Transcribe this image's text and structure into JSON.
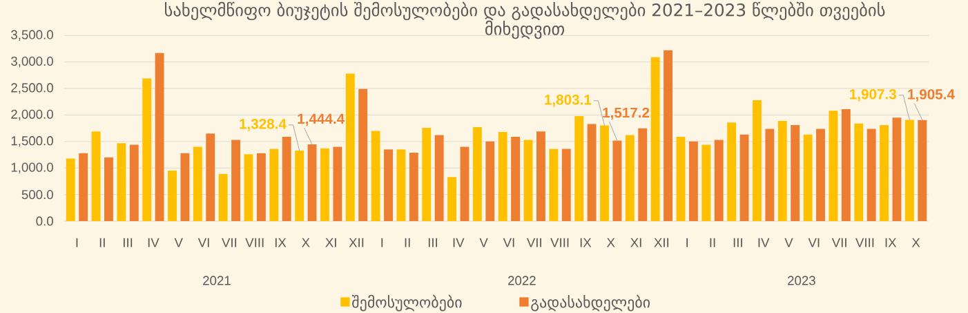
{
  "chart_data": {
    "type": "bar",
    "title": "სახელმწიფო ბიუჯეტის შემოსულობები და გადასახდელები 2021–2023 წლებში თვეების მიხედვით",
    "categories": [
      "I",
      "II",
      "III",
      "IV",
      "V",
      "VI",
      "VII",
      "VIII",
      "IX",
      "X",
      "XI",
      "XII",
      "I",
      "II",
      "III",
      "IV",
      "V",
      "VI",
      "VII",
      "VIII",
      "IX",
      "X",
      "XI",
      "XII",
      "I",
      "II",
      "III",
      "IV",
      "V",
      "VI",
      "VII",
      "VIII",
      "IX",
      "X"
    ],
    "series": [
      {
        "name": "შემოსულობები",
        "color": "#ffc000",
        "values": [
          1180,
          1690,
          1470,
          2690,
          950,
          1400,
          890,
          1260,
          1360,
          1328.4,
          1370,
          2780,
          1700,
          1350,
          1760,
          830,
          1770,
          1680,
          1530,
          1360,
          1980,
          1803.1,
          1620,
          3090,
          1590,
          1440,
          1860,
          2280,
          1890,
          1630,
          2080,
          1840,
          1810,
          1907.3
        ],
        "value_labels": [
          null,
          null,
          null,
          null,
          null,
          null,
          null,
          null,
          null,
          "1,328.4",
          null,
          null,
          null,
          null,
          null,
          null,
          null,
          null,
          null,
          null,
          null,
          "1,803.1",
          null,
          null,
          null,
          null,
          null,
          null,
          null,
          null,
          null,
          null,
          null,
          "1,907.3"
        ]
      },
      {
        "name": "გადასახდელები",
        "color": "#ed7d31",
        "values": [
          1280,
          1200,
          1440,
          3170,
          1280,
          1650,
          1530,
          1280,
          1590,
          1444.4,
          1400,
          2490,
          1350,
          1290,
          1620,
          1400,
          1500,
          1590,
          1690,
          1360,
          1830,
          1517.2,
          1750,
          3220,
          1500,
          1530,
          1630,
          1740,
          1810,
          1740,
          2110,
          1740,
          1950,
          1905.4
        ],
        "value_labels": [
          null,
          null,
          null,
          null,
          null,
          null,
          null,
          null,
          null,
          "1,444.4",
          null,
          null,
          null,
          null,
          null,
          null,
          null,
          null,
          null,
          null,
          null,
          "1,517.2",
          null,
          null,
          null,
          null,
          null,
          null,
          null,
          null,
          null,
          null,
          null,
          "1,905.4"
        ]
      }
    ],
    "ylim": [
      0,
      3500
    ],
    "yticks": [
      {
        "value": 0,
        "label": "0.0"
      },
      {
        "value": 500,
        "label": "500.0"
      },
      {
        "value": 1000,
        "label": "1,000.0"
      },
      {
        "value": 1500,
        "label": "1,500.0"
      },
      {
        "value": 2000,
        "label": "2,000.0"
      },
      {
        "value": 2500,
        "label": "2,500.0"
      },
      {
        "value": 3000,
        "label": "3,000.0"
      },
      {
        "value": 3500,
        "label": "3,500.0"
      }
    ],
    "grid": "y",
    "legend": "bottom",
    "annotations": [
      "2021",
      "2022",
      "2023"
    ]
  }
}
